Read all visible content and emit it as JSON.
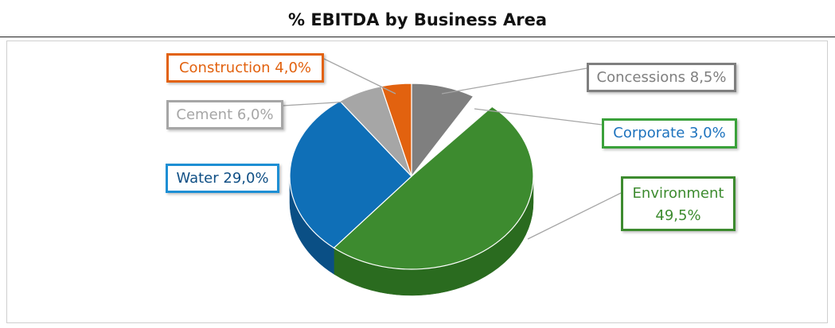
{
  "title": "% EBITDA by Business Area",
  "chart_data": {
    "type": "pie",
    "title": "% EBITDA by Business Area",
    "unit": "%",
    "slices": [
      {
        "name": "Concessions",
        "value": 8.5,
        "label": "Concessions 8,5%",
        "color": "#7f7f7f",
        "side": "#5e5e5e",
        "text_color": "#7f7f7f"
      },
      {
        "name": "Corporate",
        "value": 3.0,
        "label": "Corporate 3,0%",
        "color": "#ffffff",
        "side": "#e6e6e6",
        "text_color": "#1e73be",
        "border_color": "#3aa13a"
      },
      {
        "name": "Environment",
        "value": 49.5,
        "label_line1": "Environment",
        "label_line2": "49,5%",
        "color": "#3d8b2f",
        "side": "#2a6b1f",
        "text_color": "#3d8b2f"
      },
      {
        "name": "Water",
        "value": 29.0,
        "label": "Water 29,0%",
        "color": "#0f6fb7",
        "side": "#0a4f85",
        "text_color": "#0f4f85"
      },
      {
        "name": "Cement",
        "value": 6.0,
        "label": "Cement 6,0%",
        "color": "#a6a6a6",
        "side": "#8a8a8a",
        "text_color": "#a6a6a6"
      },
      {
        "name": "Construction",
        "value": 4.0,
        "label": "Construction 4,0%",
        "color": "#e2620f",
        "side": "#b94c06",
        "text_color": "#e2620f"
      }
    ]
  }
}
